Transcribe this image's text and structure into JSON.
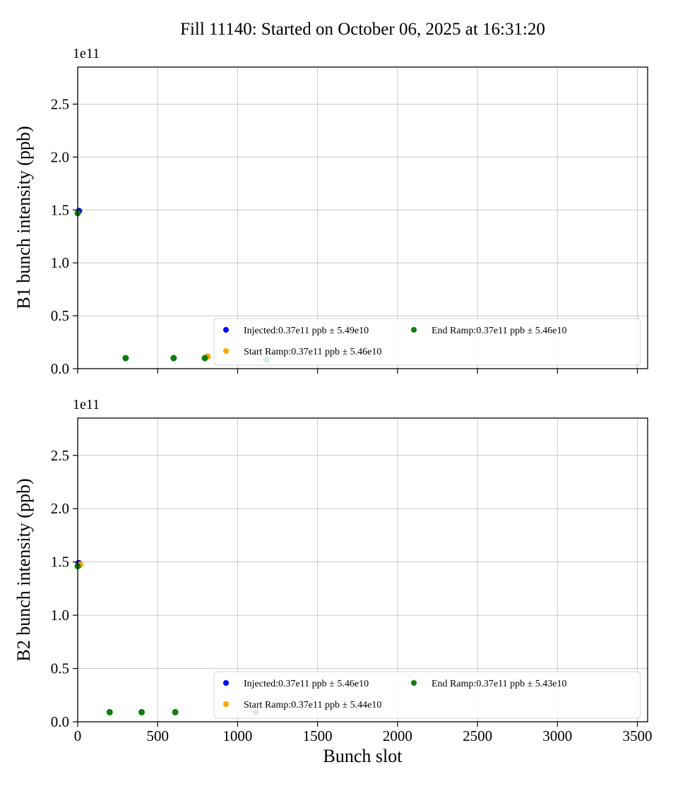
{
  "title": "Fill 11140: Started on October 06, 2025 at 16:31:20",
  "xlabel": "Bunch slot",
  "offset_label": "1e11",
  "y_units": "1e11 ppb",
  "colors": {
    "injected": "#0000ff",
    "start_ramp": "#ffa500",
    "end_ramp": "#0e7d0e",
    "grid": "#c8c8c8",
    "spine": "#000000",
    "legend_border": "#d4d4d4",
    "legend_bg": "#ffffff"
  },
  "x_ticks": [
    0,
    500,
    1000,
    1500,
    2000,
    2500,
    3000,
    3500
  ],
  "y_ticks": [
    "0.0",
    "0.5",
    "1.0",
    "1.5",
    "2.0",
    "2.5"
  ],
  "chart_data": [
    {
      "type": "scatter",
      "title": "",
      "ylabel": "B1 bunch intensity (ppb)",
      "xlabel": "Bunch slot",
      "xlim": [
        0,
        3564
      ],
      "ylim": [
        0,
        2.85
      ],
      "grid": true,
      "legend_position": "lower center",
      "series": [
        {
          "key": "injected",
          "name": "Injected",
          "legend": "Injected:0.37e11 ppb ± 5.49e10",
          "color": "#0000ff",
          "points": [
            [
              8,
              1.49
            ]
          ]
        },
        {
          "key": "start-ramp",
          "name": "Start Ramp",
          "legend": "Start Ramp:0.37e11 ppb ± 5.46e10",
          "color": "#ffa500",
          "points": [
            [
              812,
              0.115
            ]
          ]
        },
        {
          "key": "end-ramp",
          "name": "End Ramp",
          "legend": "End Ramp:0.37e11 ppb ± 5.46e10",
          "color": "#0e7d0e",
          "points": [
            [
              0,
              1.47
            ],
            [
              300,
              0.1
            ],
            [
              600,
              0.1
            ],
            [
              795,
              0.1
            ],
            [
              1180,
              0.085
            ]
          ]
        }
      ]
    },
    {
      "type": "scatter",
      "title": "",
      "ylabel": "B2 bunch intensity (ppb)",
      "xlabel": "Bunch slot",
      "xlim": [
        0,
        3564
      ],
      "ylim": [
        0,
        2.85
      ],
      "grid": true,
      "legend_position": "lower center",
      "series": [
        {
          "key": "injected",
          "name": "Injected",
          "legend": "Injected:0.37e11 ppb ± 5.46e10",
          "color": "#0000ff",
          "points": [
            [
              6,
              1.49
            ]
          ]
        },
        {
          "key": "start-ramp",
          "name": "Start Ramp",
          "legend": "Start Ramp:0.37e11 ppb ± 5.44e10",
          "color": "#ffa500",
          "points": [
            [
              16,
              1.475
            ]
          ]
        },
        {
          "key": "end-ramp",
          "name": "End Ramp",
          "legend": "End Ramp:0.37e11 ppb ± 5.43e10",
          "color": "#0e7d0e",
          "points": [
            [
              0,
              1.46
            ],
            [
              200,
              0.09
            ],
            [
              400,
              0.09
            ],
            [
              610,
              0.09
            ],
            [
              1113,
              0.087
            ]
          ]
        }
      ]
    }
  ]
}
